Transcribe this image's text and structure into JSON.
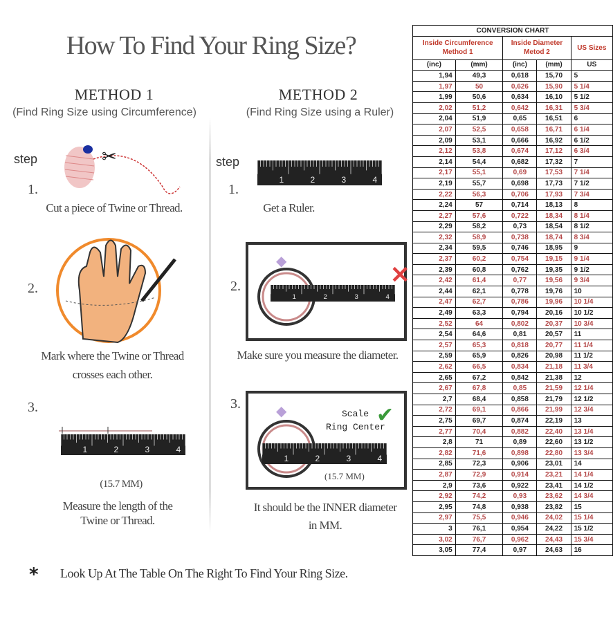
{
  "title": "How To Find Your Ring Size?",
  "method1": {
    "heading": "METHOD 1",
    "subtitle": "(Find Ring Size using Circumference)",
    "step_label": "step",
    "steps": [
      {
        "num": "1.",
        "text": [
          "Cut a piece of  Twine or Thread."
        ]
      },
      {
        "num": "2.",
        "text": [
          "Mark where the Twine or Thread",
          "crosses each other."
        ]
      },
      {
        "num": "3.",
        "measure": "(15.7 MM)",
        "text": [
          "Measure the length of the",
          "Twine or Thread."
        ]
      }
    ]
  },
  "method2": {
    "heading": "METHOD 2",
    "subtitle": "(Find Ring Size using a Ruler)",
    "step_label": "step",
    "steps": [
      {
        "num": "1.",
        "text": [
          "Get a Ruler."
        ]
      },
      {
        "num": "2.",
        "text": [
          "Make sure you measure the diameter."
        ]
      },
      {
        "num": "3.",
        "scale_label": "Scale",
        "center_label": "Ring Center",
        "measure": "(15.7 MM)",
        "text": [
          "It should be the INNER diameter",
          "in MM."
        ]
      }
    ]
  },
  "ruler_labels": [
    "1",
    "2",
    "3",
    "4"
  ],
  "footer": {
    "bullet": "*",
    "text": "Look Up At The Table On The Right To Find Your Ring Size."
  },
  "colors": {
    "accent_red": "#c0392b",
    "row_red": "#b54848",
    "check_green": "#3a9a3a",
    "hand": "#f2b27e",
    "circle": "#f08a2c"
  },
  "table": {
    "title": "CONVERSION CHART",
    "group1": [
      "Inside Circumference",
      "Method 1"
    ],
    "group2": [
      "Inside Diameter",
      "Metod 2"
    ],
    "group3": "US Sizes",
    "units": [
      "(inc)",
      "(mm)",
      "(inc)",
      "(mm)",
      "US"
    ],
    "rows": [
      [
        "1,94",
        "49,3",
        "0,618",
        "15,70",
        "5"
      ],
      [
        "1,97",
        "50",
        "0,626",
        "15,90",
        "5 1/4"
      ],
      [
        "1,99",
        "50,6",
        "0,634",
        "16,10",
        "5 1/2"
      ],
      [
        "2,02",
        "51,2",
        "0,642",
        "16,31",
        "5 3/4"
      ],
      [
        "2,04",
        "51,9",
        "0,65",
        "16,51",
        "6"
      ],
      [
        "2,07",
        "52,5",
        "0,658",
        "16,71",
        "6 1/4"
      ],
      [
        "2,09",
        "53,1",
        "0,666",
        "16,92",
        "6 1/2"
      ],
      [
        "2,12",
        "53,8",
        "0,674",
        "17,12",
        "6 3/4"
      ],
      [
        "2,14",
        "54,4",
        "0,682",
        "17,32",
        "7"
      ],
      [
        "2,17",
        "55,1",
        "0,69",
        "17,53",
        "7 1/4"
      ],
      [
        "2,19",
        "55,7",
        "0,698",
        "17,73",
        "7 1/2"
      ],
      [
        "2,22",
        "56,3",
        "0,706",
        "17,93",
        "7 3/4"
      ],
      [
        "2,24",
        "57",
        "0,714",
        "18,13",
        "8"
      ],
      [
        "2,27",
        "57,6",
        "0,722",
        "18,34",
        "8 1/4"
      ],
      [
        "2,29",
        "58,2",
        "0,73",
        "18,54",
        "8 1/2"
      ],
      [
        "2,32",
        "58,9",
        "0,738",
        "18,74",
        "8 3/4"
      ],
      [
        "2,34",
        "59,5",
        "0,746",
        "18,95",
        "9"
      ],
      [
        "2,37",
        "60,2",
        "0,754",
        "19,15",
        "9 1/4"
      ],
      [
        "2,39",
        "60,8",
        "0,762",
        "19,35",
        "9 1/2"
      ],
      [
        "2,42",
        "61,4",
        "0,77",
        "19,56",
        "9 3/4"
      ],
      [
        "2,44",
        "62,1",
        "0,778",
        "19,76",
        "10"
      ],
      [
        "2,47",
        "62,7",
        "0,786",
        "19,96",
        "10 1/4"
      ],
      [
        "2,49",
        "63,3",
        "0,794",
        "20,16",
        "10 1/2"
      ],
      [
        "2,52",
        "64",
        "0,802",
        "20,37",
        "10 3/4"
      ],
      [
        "2,54",
        "64,6",
        "0,81",
        "20,57",
        "11"
      ],
      [
        "2,57",
        "65,3",
        "0,818",
        "20,77",
        "11 1/4"
      ],
      [
        "2,59",
        "65,9",
        "0,826",
        "20,98",
        "11 1/2"
      ],
      [
        "2,62",
        "66,5",
        "0,834",
        "21,18",
        "11 3/4"
      ],
      [
        "2,65",
        "67,2",
        "0,842",
        "21,38",
        "12"
      ],
      [
        "2,67",
        "67,8",
        "0,85",
        "21,59",
        "12 1/4"
      ],
      [
        "2,7",
        "68,4",
        "0,858",
        "21,79",
        "12 1/2"
      ],
      [
        "2,72",
        "69,1",
        "0,866",
        "21,99",
        "12 3/4"
      ],
      [
        "2,75",
        "69,7",
        "0,874",
        "22,19",
        "13"
      ],
      [
        "2,77",
        "70,4",
        "0,882",
        "22,40",
        "13 1/4"
      ],
      [
        "2,8",
        "71",
        "0,89",
        "22,60",
        "13 1/2"
      ],
      [
        "2,82",
        "71,6",
        "0,898",
        "22,80",
        "13 3/4"
      ],
      [
        "2,85",
        "72,3",
        "0,906",
        "23,01",
        "14"
      ],
      [
        "2,87",
        "72,9",
        "0,914",
        "23,21",
        "14 1/4"
      ],
      [
        "2,9",
        "73,6",
        "0,922",
        "23,41",
        "14 1/2"
      ],
      [
        "2,92",
        "74,2",
        "0,93",
        "23,62",
        "14 3/4"
      ],
      [
        "2,95",
        "74,8",
        "0,938",
        "23,82",
        "15"
      ],
      [
        "2,97",
        "75,5",
        "0,946",
        "24,02",
        "15 1/4"
      ],
      [
        "3",
        "76,1",
        "0,954",
        "24,22",
        "15 1/2"
      ],
      [
        "3,02",
        "76,7",
        "0,962",
        "24,43",
        "15 3/4"
      ],
      [
        "3,05",
        "77,4",
        "0,97",
        "24,63",
        "16"
      ]
    ]
  }
}
